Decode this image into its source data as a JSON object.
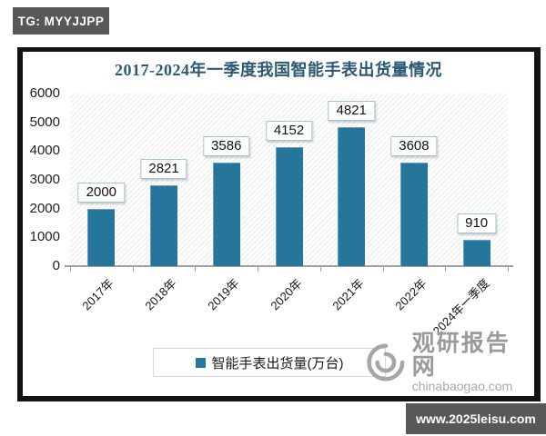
{
  "badges": {
    "tg_label": "TG: MYYJJPP",
    "site_label": "www.2025leisu.com"
  },
  "watermark": {
    "name": "观研报告网",
    "domain": "chinabaogao.com",
    "logo": "swirl-logo-icon"
  },
  "chart_data": {
    "type": "bar",
    "title": "2017-2024年一季度我国智能手表出货量情况",
    "categories": [
      "2017年",
      "2018年",
      "2019年",
      "2020年",
      "2021年",
      "2022年",
      "2024年一季度"
    ],
    "values": [
      2000,
      2821,
      3586,
      4152,
      4821,
      3608,
      910
    ],
    "series_name": "智能手表出货量(万台)",
    "legend_position": "bottom",
    "xlabel": "",
    "ylabel": "",
    "ylim": [
      0,
      6000
    ],
    "yticks": [
      0,
      1000,
      2000,
      3000,
      4000,
      5000,
      6000
    ],
    "grid": false,
    "data_labels": true,
    "x_label_rotation_deg": -45,
    "bar_color": "#26759b",
    "plot_background": "diagonal-hatch"
  },
  "colors": {
    "bar": "#26759b",
    "title": "#2c5a74",
    "badge_bg": "#58585a",
    "watermark_gray": "#9a9a9a",
    "label_box_border": "#a2c4d4",
    "axis_line": "#a0a0a0"
  }
}
